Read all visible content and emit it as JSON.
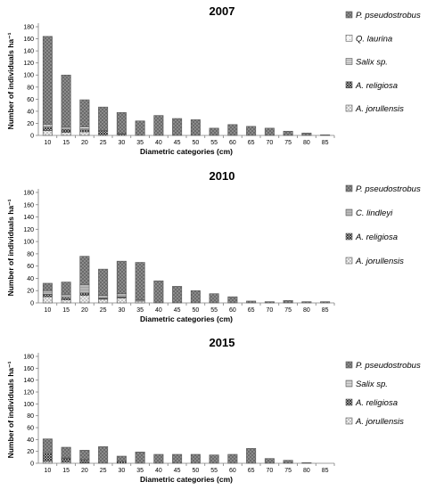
{
  "chart_data": [
    {
      "type": "bar",
      "stacked": true,
      "title": "2007",
      "xlabel": "Diametric categories (cm)",
      "ylabel": "Number of individuals ha⁻¹",
      "ylim": [
        0,
        180
      ],
      "yticks": [
        0,
        20,
        40,
        60,
        80,
        100,
        120,
        140,
        160,
        180
      ],
      "categories": [
        "10",
        "15",
        "20",
        "25",
        "30",
        "35",
        "40",
        "45",
        "50",
        "55",
        "60",
        "65",
        "70",
        "75",
        "80",
        "85"
      ],
      "legend_position": "right",
      "series": [
        {
          "name": "A. jorullensis",
          "pattern": "A-jorullensis",
          "values": [
            8,
            5,
            6,
            0,
            0,
            0,
            0,
            0,
            0,
            0,
            0,
            0,
            0,
            0,
            0,
            0
          ]
        },
        {
          "name": "A. religiosa",
          "pattern": "A-religiosa",
          "values": [
            5,
            5,
            3,
            8,
            3,
            0,
            0,
            0,
            0,
            0,
            0,
            0,
            0,
            0,
            0,
            0
          ]
        },
        {
          "name": "Salix sp.",
          "pattern": "Salix",
          "values": [
            2,
            2,
            2,
            0,
            0,
            0,
            0,
            0,
            0,
            0,
            0,
            0,
            0,
            0,
            0,
            0
          ]
        },
        {
          "name": "Q. laurina",
          "pattern": "Q-laurina",
          "values": [
            3,
            2,
            3,
            0,
            0,
            0,
            0,
            0,
            0,
            0,
            0,
            0,
            0,
            0,
            0,
            0
          ]
        },
        {
          "name": "P. pseudostrobus",
          "pattern": "P-pseudostrobus",
          "values": [
            146,
            86,
            45,
            39,
            35,
            24,
            33,
            28,
            26,
            12,
            18,
            15,
            12,
            7,
            4,
            1
          ]
        }
      ]
    },
    {
      "type": "bar",
      "stacked": true,
      "title": "2010",
      "xlabel": "Diametric categories (cm)",
      "ylabel": "Number of individuals ha⁻¹",
      "ylim": [
        0,
        180
      ],
      "yticks": [
        0,
        20,
        40,
        60,
        80,
        100,
        120,
        140,
        160,
        180
      ],
      "categories": [
        "10",
        "15",
        "20",
        "25",
        "30",
        "35",
        "40",
        "45",
        "50",
        "55",
        "60",
        "65",
        "70",
        "75",
        "80",
        "85"
      ],
      "legend_position": "right",
      "series": [
        {
          "name": "A. jorullensis",
          "pattern": "A-jorullensis",
          "values": [
            10,
            5,
            12,
            6,
            8,
            3,
            0,
            0,
            0,
            0,
            0,
            0,
            0,
            0,
            0,
            0
          ]
        },
        {
          "name": "A. religiosa",
          "pattern": "A-religiosa",
          "values": [
            4,
            4,
            4,
            2,
            2,
            0,
            0,
            0,
            0,
            0,
            0,
            0,
            0,
            0,
            0,
            0
          ]
        },
        {
          "name": "C. lindleyi",
          "pattern": "C-lindleyi",
          "values": [
            6,
            5,
            14,
            4,
            5,
            2,
            0,
            0,
            0,
            0,
            0,
            0,
            0,
            0,
            0,
            0
          ]
        },
        {
          "name": "P. pseudostrobus",
          "pattern": "P-pseudostrobus",
          "values": [
            12,
            20,
            46,
            43,
            53,
            61,
            36,
            27,
            20,
            15,
            10,
            3,
            2,
            4,
            2,
            2
          ]
        }
      ]
    },
    {
      "type": "bar",
      "stacked": true,
      "title": "2015",
      "xlabel": "Diametric categories (cm)",
      "ylabel": "Number of individuals ha⁻¹",
      "ylim": [
        0,
        180
      ],
      "yticks": [
        0,
        20,
        40,
        60,
        80,
        100,
        120,
        140,
        160,
        180
      ],
      "categories": [
        "10",
        "15",
        "20",
        "25",
        "30",
        "35",
        "40",
        "45",
        "50",
        "55",
        "60",
        "65",
        "70",
        "75",
        "80",
        "85"
      ],
      "legend_position": "right",
      "series": [
        {
          "name": "A. jorullensis",
          "pattern": "A-jorullensis",
          "values": [
            3,
            2,
            1,
            0,
            0,
            0,
            0,
            0,
            0,
            0,
            0,
            0,
            0,
            0,
            0,
            0
          ]
        },
        {
          "name": "A. religiosa",
          "pattern": "A-religiosa",
          "values": [
            14,
            6,
            4,
            0,
            3,
            0,
            0,
            0,
            0,
            0,
            0,
            0,
            0,
            0,
            0,
            0
          ]
        },
        {
          "name": "Salix sp.",
          "pattern": "Salix",
          "values": [
            2,
            1,
            1,
            0,
            0,
            0,
            0,
            0,
            0,
            0,
            0,
            0,
            0,
            0,
            0,
            0
          ]
        },
        {
          "name": "P. pseudostrobus",
          "pattern": "P-pseudostrobus",
          "values": [
            22,
            18,
            16,
            28,
            9,
            19,
            15,
            15,
            15,
            14,
            15,
            25,
            8,
            5,
            1,
            0
          ]
        }
      ]
    }
  ]
}
